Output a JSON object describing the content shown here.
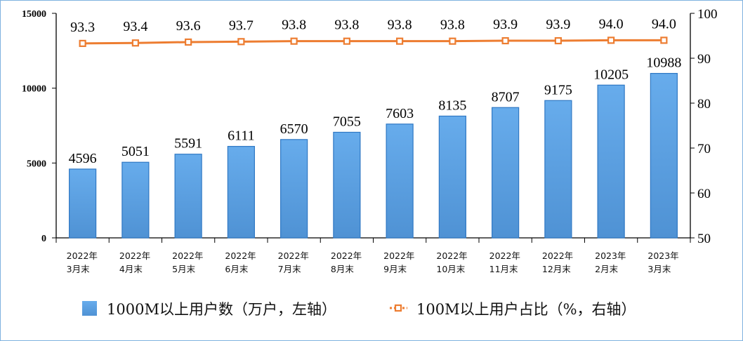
{
  "chart_data": {
    "type": "bar+line",
    "categories": [
      [
        "2022年",
        "3月末"
      ],
      [
        "2022年",
        "4月末"
      ],
      [
        "2022年",
        "5月末"
      ],
      [
        "2022年",
        "6月末"
      ],
      [
        "2022年",
        "7月末"
      ],
      [
        "2022年",
        "8月末"
      ],
      [
        "2022年",
        "9月末"
      ],
      [
        "2022年",
        "10月末"
      ],
      [
        "2022年",
        "11月末"
      ],
      [
        "2022年",
        "12月末"
      ],
      [
        "2023年",
        "2月末"
      ],
      [
        "2023年",
        "3月末"
      ]
    ],
    "series": [
      {
        "name": "1000M以上用户数（万户，左轴）",
        "type": "bar",
        "axis": "left",
        "color": "#5ba3e6",
        "values": [
          4596,
          5051,
          5591,
          6111,
          6570,
          7055,
          7603,
          8135,
          8707,
          9175,
          10205,
          10988
        ],
        "labels": [
          "4596",
          "5051",
          "5591",
          "6111",
          "6570",
          "7055",
          "7603",
          "8135",
          "8707",
          "9175",
          "10205",
          "10988"
        ]
      },
      {
        "name": "100M以上用户占比（%，右轴）",
        "type": "line",
        "axis": "right",
        "color": "#ed7d31",
        "marker": "square",
        "values": [
          93.3,
          93.4,
          93.6,
          93.7,
          93.8,
          93.8,
          93.8,
          93.8,
          93.9,
          93.9,
          94.0,
          94.0
        ],
        "labels": [
          "93.3",
          "93.4",
          "93.6",
          "93.7",
          "93.8",
          "93.8",
          "93.8",
          "93.8",
          "93.9",
          "93.9",
          "94.0",
          "94.0"
        ]
      }
    ],
    "left_axis": {
      "ylim": [
        0,
        15000
      ],
      "ticks": [
        "0",
        "5000",
        "10000",
        "15000"
      ]
    },
    "right_axis": {
      "ylim": [
        50,
        100
      ],
      "ticks": [
        "50",
        "60",
        "70",
        "80",
        "90",
        "100"
      ]
    },
    "grid": false,
    "legend_position": "bottom"
  }
}
